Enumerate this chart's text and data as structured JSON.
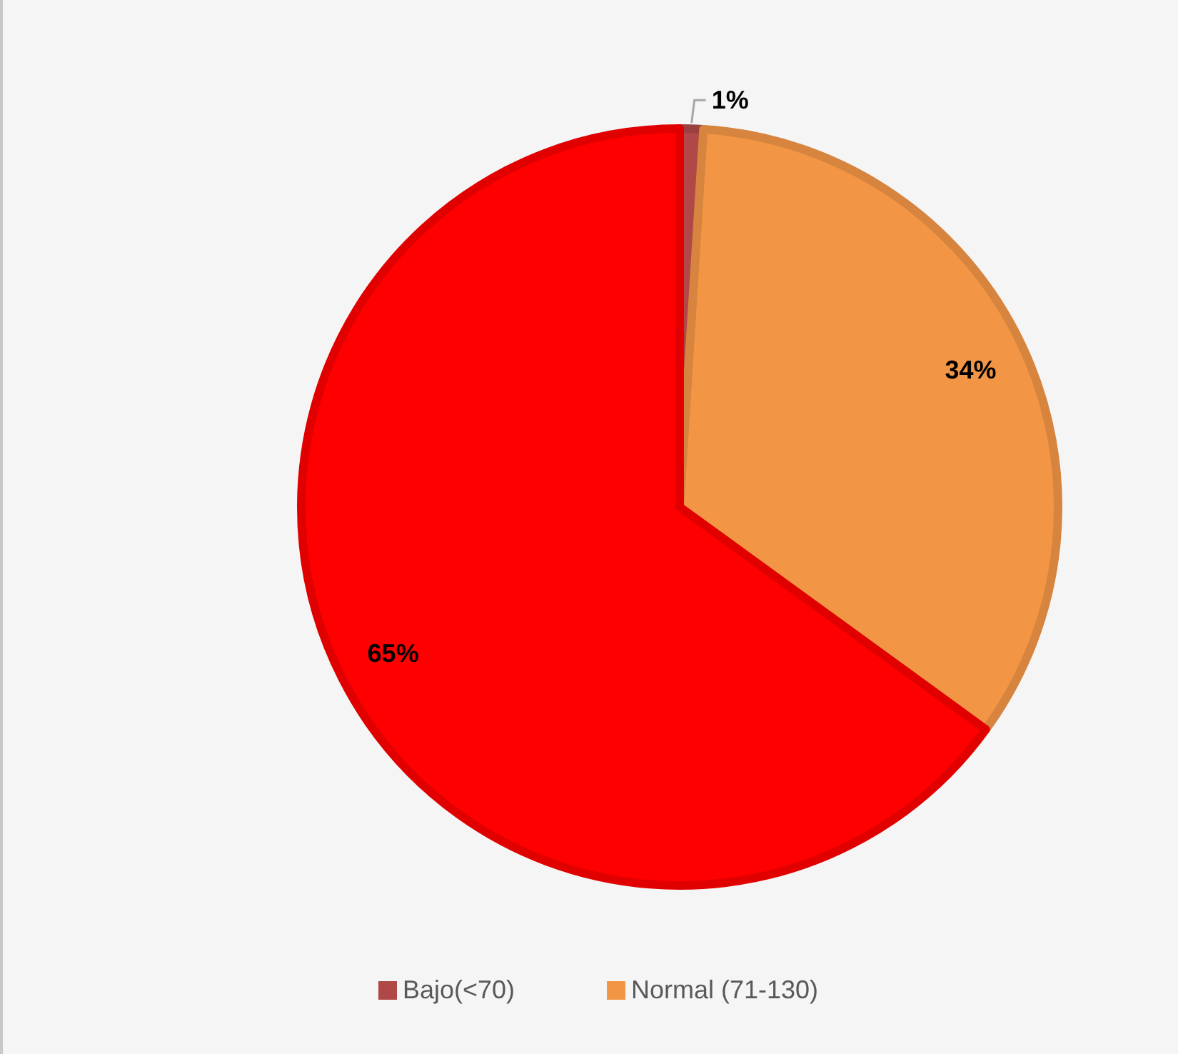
{
  "chart_data": {
    "type": "pie",
    "categories": [
      "Bajo(<70)",
      "Normal (71-130)",
      null
    ],
    "values": [
      1,
      34,
      65
    ],
    "colors": [
      "#b04848",
      "#f29646",
      "#ff0000"
    ],
    "value_labels": [
      "1%",
      "34%",
      "65%"
    ],
    "legend": "bottom"
  }
}
